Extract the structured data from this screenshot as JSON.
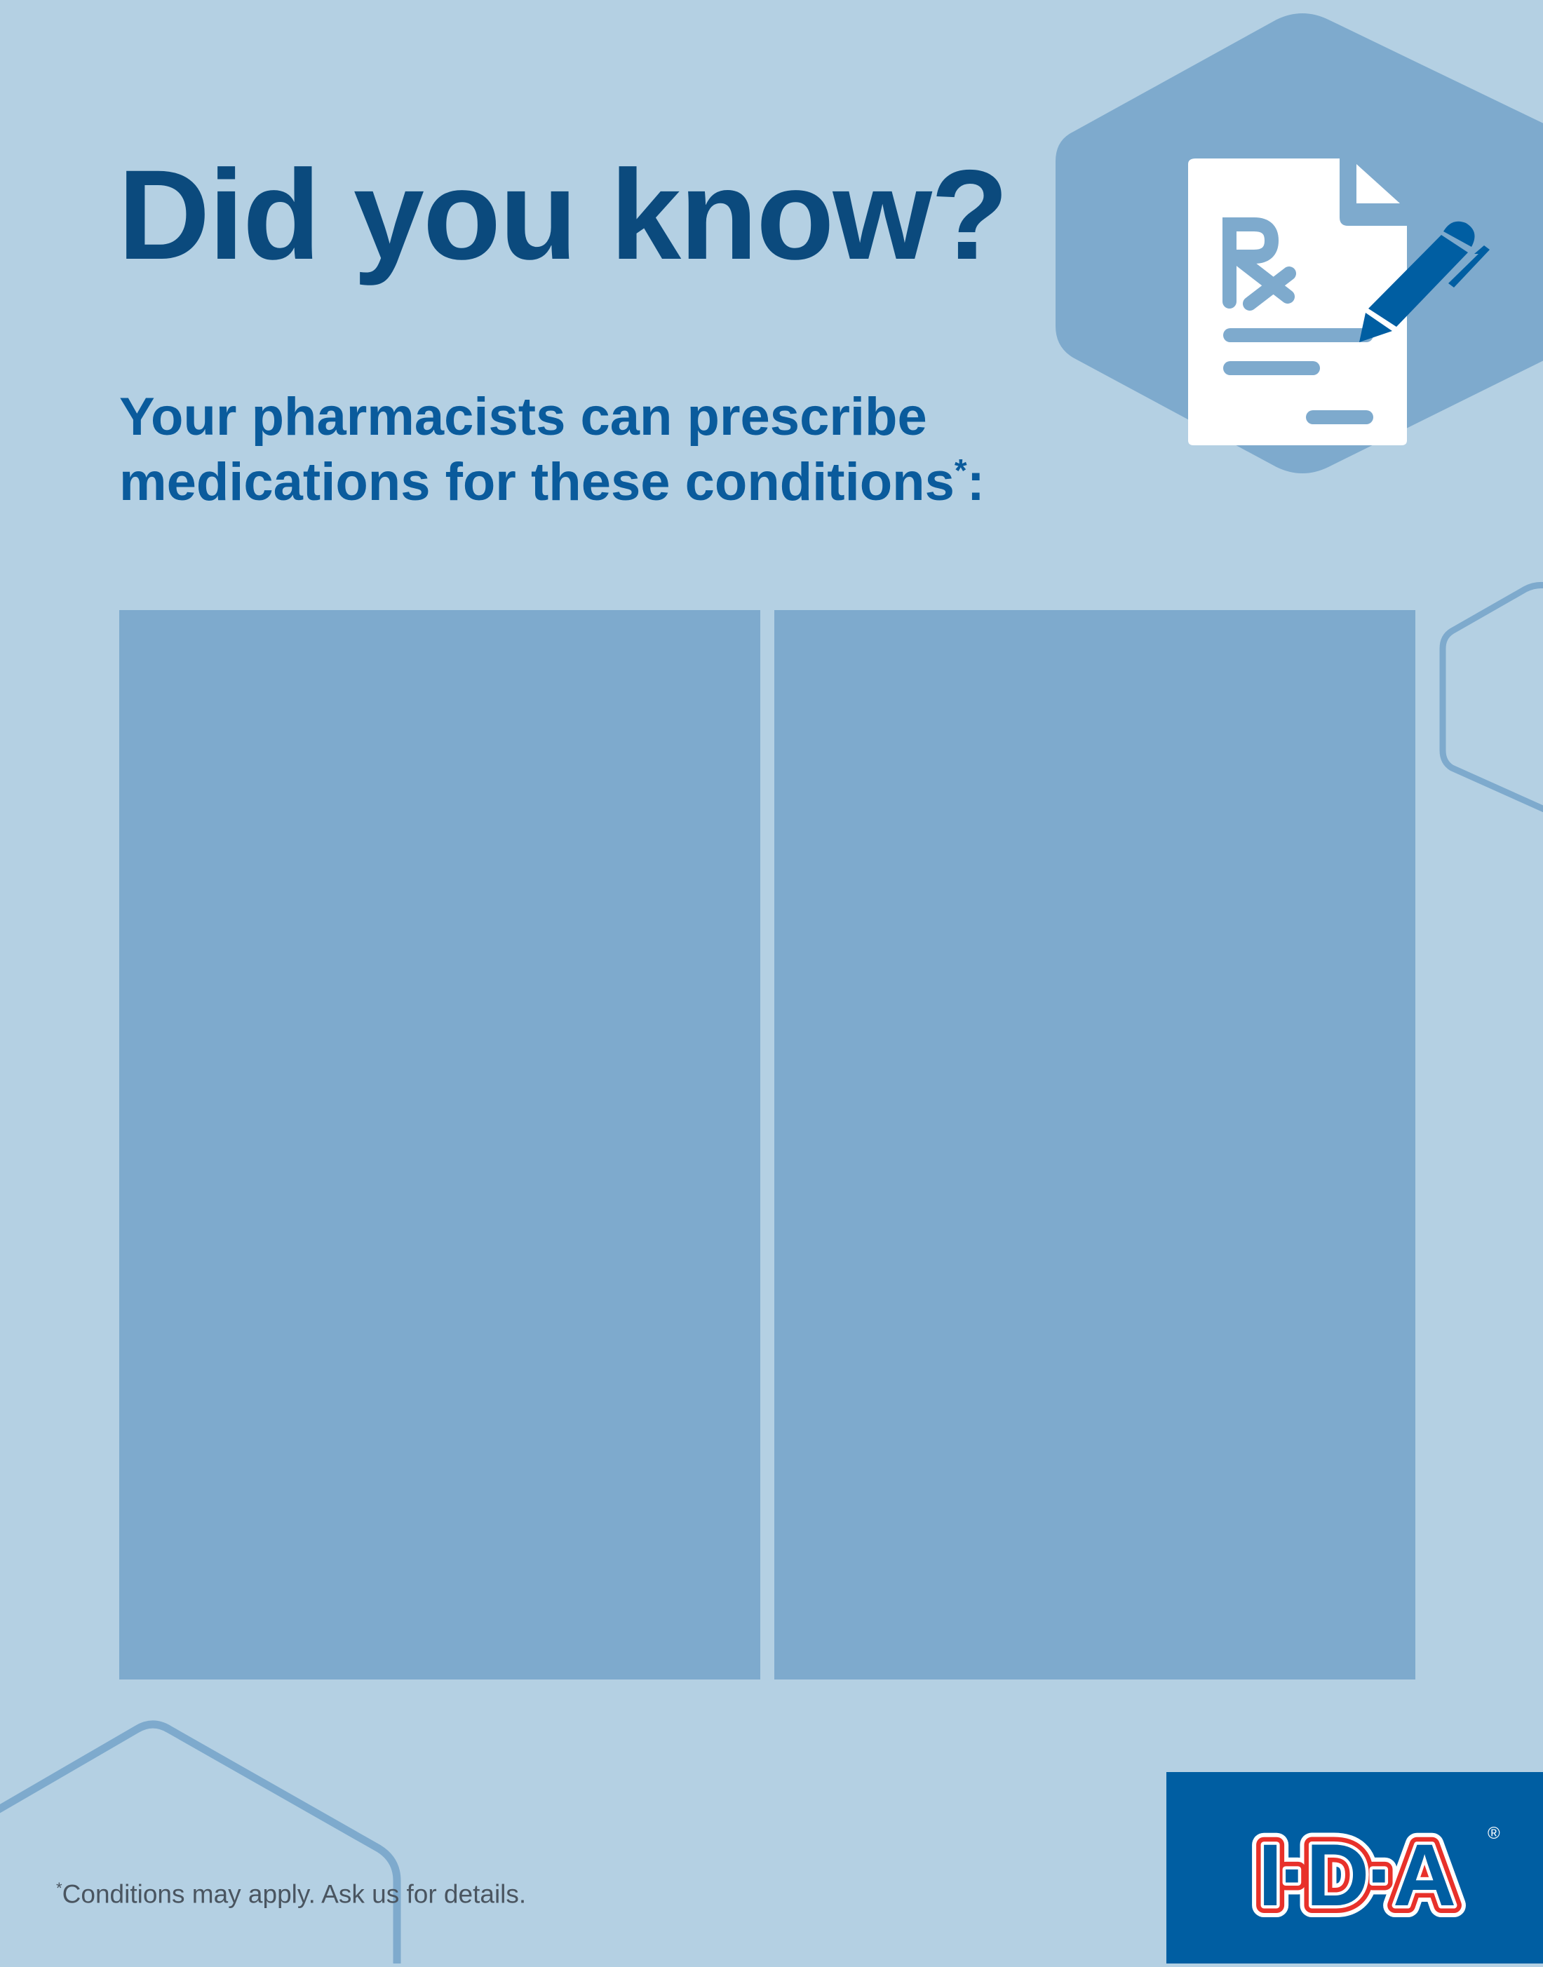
{
  "header": {
    "title": "Did you know?",
    "subtitle_line1": "Your pharmacists can prescribe",
    "subtitle_line2": "medications for these conditions",
    "subtitle_mark": "*",
    "subtitle_end": ":"
  },
  "icon": {
    "name": "prescription-document-with-pen-icon",
    "rx_symbol": "Rx"
  },
  "panels": [
    {
      "content": ""
    },
    {
      "content": ""
    }
  ],
  "footer": {
    "footnote_mark": "*",
    "footnote": "Conditions may apply. Ask us for details.",
    "logo_text": "I·D·A",
    "logo_registered": "®"
  },
  "colors": {
    "background": "#b4d0e3",
    "panel": "#7eaacd",
    "title": "#0b4a7d",
    "subtitle": "#0a5b9c",
    "logo_bg": "#005ea2",
    "logo_red": "#e8312a"
  }
}
